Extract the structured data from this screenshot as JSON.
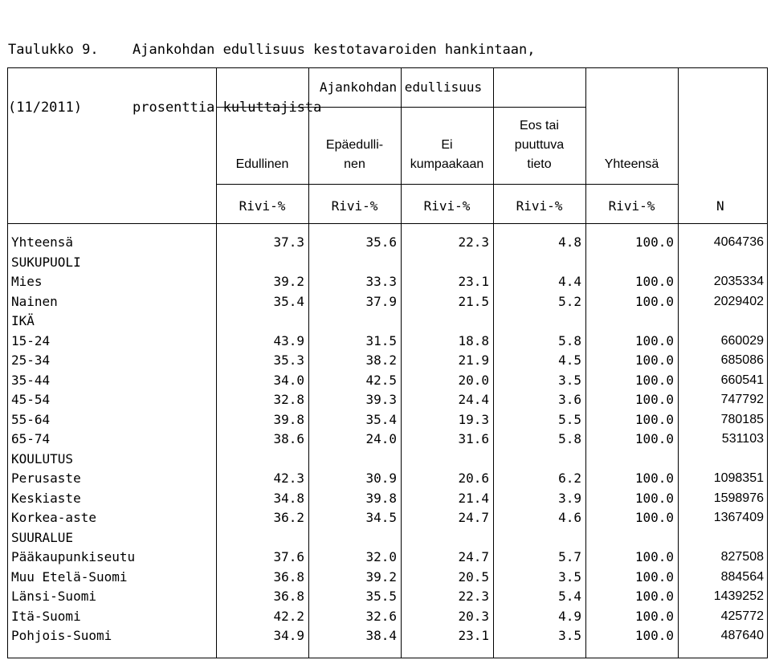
{
  "title": {
    "label_line1": "Taulukko 9.",
    "label_line2": "(11/2011)",
    "text_line1": "Ajankohdan edullisuus kestotavaroiden hankintaan,",
    "text_line2": "prosenttia kuluttajista"
  },
  "header": {
    "group_label": "Ajankohdan edullisuus",
    "columns": [
      {
        "lines": [
          "",
          "",
          "Edullinen"
        ]
      },
      {
        "lines": [
          "",
          "Epäedulli-",
          "nen"
        ]
      },
      {
        "lines": [
          "",
          "Ei",
          "kumpaakaan"
        ]
      },
      {
        "lines": [
          "Eos tai",
          "puuttuva",
          "tieto"
        ]
      },
      {
        "lines": [
          "",
          "",
          "Yhteensä"
        ]
      }
    ],
    "units": [
      "Rivi-%",
      "Rivi-%",
      "Rivi-%",
      "Rivi-%",
      "Rivi-%"
    ],
    "n_label": "N"
  },
  "rows": [
    {
      "label": "Yhteensä",
      "values": [
        "37.3",
        "35.6",
        "22.3",
        "4.8",
        "100.0"
      ],
      "n": "4064736"
    },
    {
      "label": "SUKUPUOLI",
      "values": [
        "",
        "",
        "",
        "",
        ""
      ],
      "n": ""
    },
    {
      "label": "Mies",
      "values": [
        "39.2",
        "33.3",
        "23.1",
        "4.4",
        "100.0"
      ],
      "n": "2035334"
    },
    {
      "label": "Nainen",
      "values": [
        "35.4",
        "37.9",
        "21.5",
        "5.2",
        "100.0"
      ],
      "n": "2029402"
    },
    {
      "label": "IKÄ",
      "values": [
        "",
        "",
        "",
        "",
        ""
      ],
      "n": ""
    },
    {
      "label": "15-24",
      "values": [
        "43.9",
        "31.5",
        "18.8",
        "5.8",
        "100.0"
      ],
      "n": "660029"
    },
    {
      "label": "25-34",
      "values": [
        "35.3",
        "38.2",
        "21.9",
        "4.5",
        "100.0"
      ],
      "n": "685086"
    },
    {
      "label": "35-44",
      "values": [
        "34.0",
        "42.5",
        "20.0",
        "3.5",
        "100.0"
      ],
      "n": "660541"
    },
    {
      "label": "45-54",
      "values": [
        "32.8",
        "39.3",
        "24.4",
        "3.6",
        "100.0"
      ],
      "n": "747792"
    },
    {
      "label": "55-64",
      "values": [
        "39.8",
        "35.4",
        "19.3",
        "5.5",
        "100.0"
      ],
      "n": "780185"
    },
    {
      "label": "65-74",
      "values": [
        "38.6",
        "24.0",
        "31.6",
        "5.8",
        "100.0"
      ],
      "n": "531103"
    },
    {
      "label": "KOULUTUS",
      "values": [
        "",
        "",
        "",
        "",
        ""
      ],
      "n": ""
    },
    {
      "label": "Perusaste",
      "values": [
        "42.3",
        "30.9",
        "20.6",
        "6.2",
        "100.0"
      ],
      "n": "1098351"
    },
    {
      "label": "Keskiaste",
      "values": [
        "34.8",
        "39.8",
        "21.4",
        "3.9",
        "100.0"
      ],
      "n": "1598976"
    },
    {
      "label": "Korkea-aste",
      "values": [
        "36.2",
        "34.5",
        "24.7",
        "4.6",
        "100.0"
      ],
      "n": "1367409"
    },
    {
      "label": "SUURALUE",
      "values": [
        "",
        "",
        "",
        "",
        ""
      ],
      "n": ""
    },
    {
      "label": "Pääkaupunkiseutu",
      "values": [
        "37.6",
        "32.0",
        "24.7",
        "5.7",
        "100.0"
      ],
      "n": "827508"
    },
    {
      "label": "Muu Etelä-Suomi",
      "values": [
        "36.8",
        "39.2",
        "20.5",
        "3.5",
        "100.0"
      ],
      "n": "884564"
    },
    {
      "label": "Länsi-Suomi",
      "values": [
        "36.8",
        "35.5",
        "22.3",
        "5.4",
        "100.0"
      ],
      "n": "1439252"
    },
    {
      "label": "Itä-Suomi",
      "values": [
        "42.2",
        "32.6",
        "20.3",
        "4.9",
        "100.0"
      ],
      "n": "425772"
    },
    {
      "label": "Pohjois-Suomi",
      "values": [
        "34.9",
        "38.4",
        "23.1",
        "3.5",
        "100.0"
      ],
      "n": "487640"
    }
  ]
}
